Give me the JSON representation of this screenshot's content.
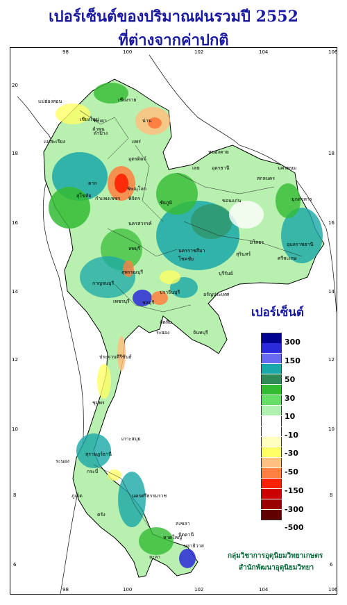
{
  "title_line1": "เปอร์เซ็นต์ของปริมาณฝนรวมปี 2552",
  "title_line2": "ที่ต่างจากค่าปกติ",
  "axes": {
    "x_ticks": [
      "98",
      "100",
      "102",
      "104",
      "106"
    ],
    "y_ticks": [
      "20",
      "18",
      "16",
      "14",
      "12",
      "10",
      "8",
      "6"
    ]
  },
  "legend": {
    "title": "เปอร์เซ็นต์",
    "colors": [
      "#000090",
      "#2a2ad8",
      "#6a6af0",
      "#1aa8a8",
      "#2e8b57",
      "#33bb33",
      "#66dd66",
      "#b0f0b0",
      "#ffffff",
      "#ffffff",
      "#ffffc0",
      "#ffff66",
      "#ffc080",
      "#ff8040",
      "#ff2000",
      "#cc0000",
      "#990000",
      "#600000"
    ],
    "labels": [
      "300",
      "150",
      "50",
      "30",
      "10",
      "-10",
      "-30",
      "-50",
      "-150",
      "-300",
      "-500"
    ]
  },
  "credits": {
    "line1": "กลุ่มวิชาการอุตุนิยมวิทยาเกษตร",
    "line2": "สำนักพัฒนาอุตุนิยมวิทยา"
  },
  "places": [
    {
      "name": "เชียงราย"
    },
    {
      "name": "แม่ฮ่องสอน"
    },
    {
      "name": "พะเยา"
    },
    {
      "name": "น่าน"
    },
    {
      "name": "เชียงใหม่"
    },
    {
      "name": "ลำพูน"
    },
    {
      "name": "ลำปาง"
    },
    {
      "name": "แพร่"
    },
    {
      "name": "แม่สะเรียง"
    },
    {
      "name": "อุตรดิตถ์"
    },
    {
      "name": "ตาก"
    },
    {
      "name": "พิษณุโลก"
    },
    {
      "name": "สุโขทัย"
    },
    {
      "name": "กำแพงเพชร"
    },
    {
      "name": "พิจิตร"
    },
    {
      "name": "นครสวรรค์"
    },
    {
      "name": "หนองคาย"
    },
    {
      "name": "อุดรธานี"
    },
    {
      "name": "นครพนม"
    },
    {
      "name": "เลย"
    },
    {
      "name": "สกลนคร"
    },
    {
      "name": "มุกดาหาร"
    },
    {
      "name": "ขอนแก่น"
    },
    {
      "name": "ชัยภูมิ"
    },
    {
      "name": "ยโสธร"
    },
    {
      "name": "อุบลราชธานี"
    },
    {
      "name": "สุรินทร์"
    },
    {
      "name": "นครราชสีมา"
    },
    {
      "name": "โชคชัย"
    },
    {
      "name": "บุรีรัมย์"
    },
    {
      "name": "ลพบุรี"
    },
    {
      "name": "สุพรรณบุรี"
    },
    {
      "name": "กาญจนบุรี"
    },
    {
      "name": "ปราจีนบุรี"
    },
    {
      "name": "อรัญประเทศ"
    },
    {
      "name": "ชลบุรี"
    },
    {
      "name": "ระยอง"
    },
    {
      "name": "จันทบุรี"
    },
    {
      "name": "ประจวบคีรีขันธ์"
    },
    {
      "name": "ชุมพร"
    },
    {
      "name": "เกาะสมุย"
    },
    {
      "name": "สุราษฎร์ธานี"
    },
    {
      "name": "ระนอง"
    },
    {
      "name": "นครศรีธรรมราช"
    },
    {
      "name": "ภูเก็ต"
    },
    {
      "name": "กระบี่"
    },
    {
      "name": "ตรัง"
    },
    {
      "name": "สงขลา"
    },
    {
      "name": "หาดใหญ่"
    },
    {
      "name": "ปัตตานี"
    },
    {
      "name": "นราธิวาส"
    },
    {
      "name": "ยะลา"
    },
    {
      "name": "เพชรบุรี"
    },
    {
      "name": "สัตหีบ"
    },
    {
      "name": "ศรีสะเกษ"
    }
  ]
}
